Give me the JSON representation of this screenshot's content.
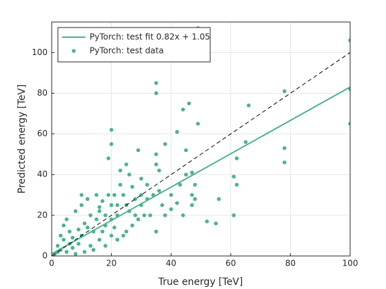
{
  "chart_data": {
    "type": "scatter",
    "xlabel": "True energy [TeV]",
    "ylabel": "Predicted energy [TeV]",
    "xlim": [
      0,
      100
    ],
    "ylim": [
      0,
      115
    ],
    "xticks": [
      0,
      20,
      40,
      60,
      80,
      100
    ],
    "yticks": [
      0,
      20,
      40,
      60,
      80,
      100
    ],
    "grid": true,
    "legend": "upper left",
    "series": [
      {
        "name": "PyTorch: test fit 0.82x + 1.05",
        "style": "line",
        "color": "#4db38e",
        "x": [
          0,
          100
        ],
        "values": [
          1.05,
          83.05
        ]
      },
      {
        "name": "PyTorch: test data",
        "style": "marker",
        "color": "#4db38e",
        "x": [
          49,
          100,
          100,
          100,
          78,
          78,
          78,
          35,
          35,
          66,
          62,
          61,
          62,
          61,
          65,
          56,
          52,
          55,
          46,
          44,
          49,
          42,
          20,
          20,
          19,
          38,
          45,
          48,
          47,
          48,
          47,
          45,
          47,
          40,
          40,
          36,
          35,
          35,
          29,
          26,
          25,
          23,
          30,
          32,
          30,
          28,
          25,
          22,
          20,
          18,
          15,
          12,
          10,
          8,
          5,
          3,
          2,
          4,
          6,
          7,
          9,
          10,
          12,
          14,
          15,
          16,
          18,
          20,
          22,
          24,
          26,
          28,
          30,
          32,
          34,
          36,
          38,
          42,
          44,
          27,
          25,
          20,
          16,
          13,
          11,
          8,
          5,
          3,
          1,
          2,
          6,
          7,
          9,
          11,
          13,
          17,
          19,
          21,
          23,
          14,
          18,
          22,
          33,
          37,
          43,
          35,
          27,
          31,
          29,
          16,
          10,
          24,
          4,
          17,
          21
        ],
        "values": [
          112,
          106,
          82,
          65,
          81,
          53,
          46,
          85,
          80,
          74,
          48,
          39,
          35,
          20,
          56,
          28,
          17,
          16,
          75,
          72,
          65,
          61,
          62,
          55,
          48,
          55,
          52,
          35,
          30,
          28,
          25,
          40,
          41,
          23,
          30,
          42,
          50,
          45,
          52,
          40,
          45,
          42,
          38,
          35,
          30,
          28,
          25,
          20,
          25,
          20,
          30,
          28,
          25,
          22,
          18,
          10,
          5,
          8,
          12,
          4,
          6,
          10,
          14,
          12,
          18,
          22,
          15,
          18,
          25,
          30,
          22,
          20,
          25,
          28,
          30,
          32,
          20,
          26,
          20,
          15,
          12,
          10,
          8,
          5,
          2,
          1,
          2,
          3,
          1,
          2,
          6,
          9,
          13,
          16,
          20,
          27,
          30,
          30,
          35,
          3,
          5,
          8,
          20,
          25,
          35,
          12,
          34,
          20,
          18,
          24,
          30,
          10,
          15,
          12,
          14
        ]
      },
      {
        "style": "line",
        "dash": true,
        "color": "#000000",
        "x": [
          0,
          100
        ],
        "values": [
          0,
          100
        ]
      }
    ]
  }
}
